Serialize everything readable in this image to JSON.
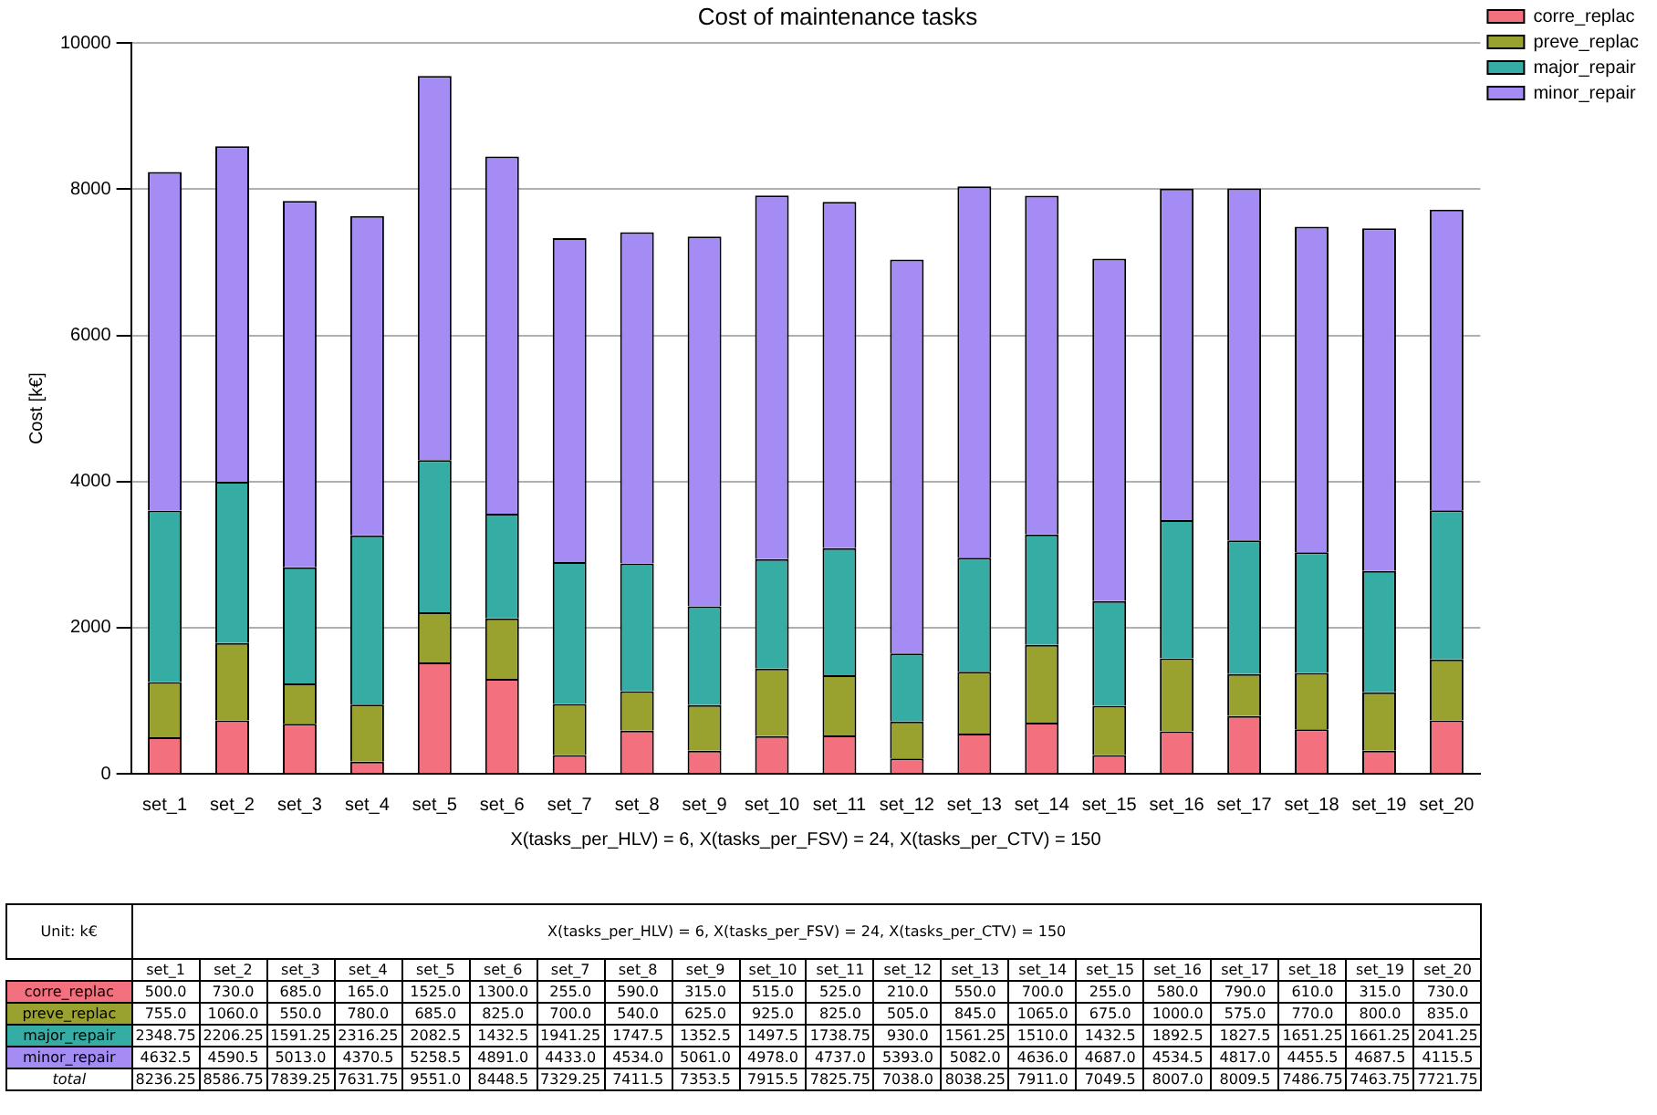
{
  "chart_data": {
    "type": "bar",
    "title": "Cost of maintenance tasks",
    "xlabel": "X(tasks_per_HLV) = 6, X(tasks_per_FSV) = 24, X(tasks_per_CTV) = 150",
    "ylabel": "Cost [k€]",
    "categories": [
      "set_1",
      "set_2",
      "set_3",
      "set_4",
      "set_5",
      "set_6",
      "set_7",
      "set_8",
      "set_9",
      "set_10",
      "set_11",
      "set_12",
      "set_13",
      "set_14",
      "set_15",
      "set_16",
      "set_17",
      "set_18",
      "set_19",
      "set_20"
    ],
    "stacked": true,
    "ylim": [
      0,
      10000
    ],
    "yticks": [
      0,
      2000,
      4000,
      6000,
      8000,
      10000
    ],
    "grid": "y",
    "legend": "top right",
    "series": [
      {
        "name": "corre_replac",
        "color": "#f3707f",
        "values": [
          500,
          730,
          685,
          165,
          1525,
          1300,
          255,
          590,
          315,
          515,
          525,
          210,
          550,
          700,
          255,
          580,
          790,
          610,
          315,
          730
        ],
        "value_labels": [
          "500.0",
          "730.0",
          "685.0",
          "165.0",
          "1525.0",
          "1300.0",
          "255.0",
          "590.0",
          "315.0",
          "515.0",
          "525.0",
          "210.0",
          "550.0",
          "700.0",
          "255.0",
          "580.0",
          "790.0",
          "610.0",
          "315.0",
          "730.0"
        ]
      },
      {
        "name": "preve_replac",
        "color": "#9aa22f",
        "values": [
          755,
          1060,
          550,
          780,
          685,
          825,
          700,
          540,
          625,
          925,
          825,
          505,
          845,
          1065,
          675,
          1000,
          575,
          770,
          800,
          835
        ],
        "value_labels": [
          "755.0",
          "1060.0",
          "550.0",
          "780.0",
          "685.0",
          "825.0",
          "700.0",
          "540.0",
          "625.0",
          "925.0",
          "825.0",
          "505.0",
          "845.0",
          "1065.0",
          "675.0",
          "1000.0",
          "575.0",
          "770.0",
          "800.0",
          "835.0"
        ]
      },
      {
        "name": "major_repair",
        "color": "#36ada4",
        "values": [
          2348.75,
          2206.25,
          1591.25,
          2316.25,
          2082.5,
          1432.5,
          1941.25,
          1747.5,
          1352.5,
          1497.5,
          1738.75,
          930,
          1561.25,
          1510,
          1432.5,
          1892.5,
          1827.5,
          1651.25,
          1661.25,
          2041.25
        ],
        "value_labels": [
          "2348.75",
          "2206.25",
          "1591.25",
          "2316.25",
          "2082.5",
          "1432.5",
          "1941.25",
          "1747.5",
          "1352.5",
          "1497.5",
          "1738.75",
          "930.0",
          "1561.25",
          "1510.0",
          "1432.5",
          "1892.5",
          "1827.5",
          "1651.25",
          "1661.25",
          "2041.25"
        ]
      },
      {
        "name": "minor_repair",
        "color": "#a48cf4",
        "values": [
          4632.5,
          4590.5,
          5013,
          4370.5,
          5258.5,
          4891,
          4433,
          4534,
          5061,
          4978,
          4737,
          5393,
          5082,
          4636,
          4687,
          4534.5,
          4817,
          4455.5,
          4687.5,
          4115.5
        ],
        "value_labels": [
          "4632.5",
          "4590.5",
          "5013.0",
          "4370.5",
          "5258.5",
          "4891.0",
          "4433.0",
          "4534.0",
          "5061.0",
          "4978.0",
          "4737.0",
          "5393.0",
          "5082.0",
          "4636.0",
          "4687.0",
          "4534.5",
          "4817.0",
          "4455.5",
          "4687.5",
          "4115.5"
        ]
      }
    ],
    "annotations": [
      "Unit: k€",
      "X(tasks_per_HLV) = 6, X(tasks_per_FSV) = 24, X(tasks_per_CTV) = 150",
      "total",
      "8236.25",
      "8586.75",
      "7839.25",
      "7631.75",
      "9551.0",
      "8448.5",
      "7329.25",
      "7411.5",
      "7353.5",
      "7915.5",
      "7825.75",
      "7038.0",
      "8038.25",
      "7911.0",
      "7049.5",
      "8007.0",
      "8009.5",
      "7486.75",
      "7463.75",
      "7721.75"
    ]
  }
}
